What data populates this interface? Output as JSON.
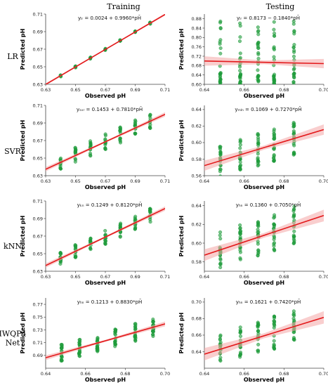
{
  "headers": {
    "training": "Training",
    "testing": "Testing"
  },
  "rows": [
    {
      "label": [
        "LR"
      ]
    },
    {
      "label": [
        "SVR"
      ]
    },
    {
      "label": [
        "kNN"
      ]
    },
    {
      "label": [
        "IWQP4",
        "Net"
      ]
    }
  ],
  "colors": {
    "points": "#1e9b3a",
    "fit": "#e31a1c",
    "band": "#f4a6a6"
  },
  "chart_data": [
    {
      "type": "scatter",
      "id": "lr-train",
      "xlabel": "Observed pH",
      "ylabel": "Predicted pH",
      "equation": "yₗᵣ = 0.0024 + 0.9960*pH̄",
      "intercept": 0.0024,
      "slope": 0.996,
      "xlim": [
        0.63,
        0.71
      ],
      "ylim": [
        0.63,
        0.71
      ],
      "xticks": [
        "0.63",
        "0.65",
        "0.67",
        "0.69",
        "0.71"
      ],
      "yticks": [
        "0.63",
        "0.65",
        "0.67",
        "0.69",
        "0.71"
      ],
      "x_groups": [
        0.64,
        0.65,
        0.66,
        0.67,
        0.68,
        0.69,
        0.7
      ],
      "y_spread": 0.001,
      "points_per_group": 6,
      "ci_band": 0.0005
    },
    {
      "type": "scatter",
      "id": "lr-test",
      "xlabel": "Observed pH",
      "ylabel": "Predicted pH",
      "equation": "yₗᵣ = 0.8173 − 0.1840*pH̄",
      "intercept": 0.8173,
      "slope": -0.184,
      "xlim": [
        0.64,
        0.7
      ],
      "ylim": [
        0.6,
        0.9
      ],
      "xticks": [
        "0.64",
        "0.66",
        "0.68",
        "0.70"
      ],
      "yticks": [
        "0.60",
        "0.64",
        "0.68",
        "0.72",
        "0.76",
        "0.80",
        "0.84",
        "0.88"
      ],
      "x_groups": [
        0.648,
        0.658,
        0.667,
        0.675,
        0.685
      ],
      "y_range": [
        0.6,
        0.88
      ],
      "points_per_group": 26,
      "ci_band": 0.008
    },
    {
      "type": "scatter",
      "id": "svr-train",
      "xlabel": "Observed pH",
      "ylabel": "Predicted pH",
      "equation": "yₛᵥᵣ = 0.1453 + 0.7810*pH̄",
      "intercept": 0.1453,
      "slope": 0.781,
      "xlim": [
        0.63,
        0.71
      ],
      "ylim": [
        0.63,
        0.71
      ],
      "xticks": [
        "0.63",
        "0.65",
        "0.67",
        "0.69",
        "0.71"
      ],
      "yticks": [
        "0.63",
        "0.65",
        "0.67",
        "0.69",
        "0.71"
      ],
      "x_groups": [
        0.64,
        0.65,
        0.66,
        0.67,
        0.68,
        0.69,
        0.7
      ],
      "y_spread": 0.009,
      "points_per_group": 14,
      "ci_band": 0.001
    },
    {
      "type": "scatter",
      "id": "svr-test",
      "xlabel": "Observed pH",
      "ylabel": "Predicted pH",
      "equation": "yₘₗₙ = 0.1069 + 0.7270*pH̄",
      "intercept": 0.1069,
      "slope": 0.727,
      "xlim": [
        0.64,
        0.7
      ],
      "ylim": [
        0.56,
        0.645
      ],
      "xticks": [
        "0.64",
        "0.66",
        "0.68",
        "0.70"
      ],
      "yticks": [
        "0.56",
        "0.58",
        "0.60",
        "0.62",
        "0.64"
      ],
      "x_groups": [
        0.648,
        0.658,
        0.667,
        0.675,
        0.685
      ],
      "y_spread": 0.02,
      "points_per_group": 22,
      "ci_band": 0.0025
    },
    {
      "type": "scatter",
      "id": "knn-train",
      "xlabel": "Observed pH",
      "ylabel": "Predicted pH",
      "equation": "yₖₙ = 0.1249 + 0.8120*pH̄",
      "intercept": 0.1249,
      "slope": 0.812,
      "xlim": [
        0.63,
        0.71
      ],
      "ylim": [
        0.63,
        0.71
      ],
      "xticks": [
        "0.63",
        "0.65",
        "0.67",
        "0.69",
        "0.71"
      ],
      "yticks": [
        "0.63",
        "0.65",
        "0.67",
        "0.69",
        "0.71"
      ],
      "x_groups": [
        0.64,
        0.65,
        0.66,
        0.67,
        0.68,
        0.69,
        0.7
      ],
      "y_spread": 0.008,
      "points_per_group": 14,
      "ci_band": 0.001
    },
    {
      "type": "scatter",
      "id": "knn-test",
      "xlabel": "Observed pH",
      "ylabel": "Predicted pH",
      "equation": "yₕₙ = 0.1360 + 0.7050*pH̄",
      "intercept": 0.136,
      "slope": 0.705,
      "xlim": [
        0.64,
        0.7
      ],
      "ylim": [
        0.57,
        0.645
      ],
      "xticks": [
        "0.64",
        "0.66",
        "0.68",
        "0.70"
      ],
      "yticks": [
        "0.58",
        "0.60",
        "0.62",
        "0.64"
      ],
      "x_groups": [
        0.648,
        0.658,
        0.667,
        0.675,
        0.685
      ],
      "y_spread": 0.02,
      "points_per_group": 22,
      "ci_band": 0.0025
    },
    {
      "type": "scatter",
      "id": "iwqp-train",
      "xlabel": "Observed pH",
      "ylabel": "Predicted pH",
      "equation": "yₕₙ = 0.1213 + 0.8830*pH̄",
      "intercept": 0.1213,
      "slope": 0.883,
      "xlim": [
        0.64,
        0.7
      ],
      "ylim": [
        0.67,
        0.78
      ],
      "xticks": [
        "0.64",
        "0.66",
        "0.68",
        "0.70"
      ],
      "yticks": [
        "0.69",
        "0.71",
        "0.73",
        "0.75",
        "0.77"
      ],
      "x_groups": [
        0.648,
        0.657,
        0.666,
        0.675,
        0.685,
        0.694
      ],
      "y_spread": 0.014,
      "points_per_group": 20,
      "ci_band": 0.0015
    },
    {
      "type": "scatter",
      "id": "iwqp-test",
      "xlabel": "Observed pH",
      "ylabel": "Predicted pH",
      "equation": "yₕₙ = 0.1621 + 0.7420*pH̄",
      "intercept": 0.1621,
      "slope": 0.742,
      "xlim": [
        0.64,
        0.7
      ],
      "ylim": [
        0.62,
        0.705
      ],
      "xticks": [
        "0.64",
        "0.66",
        "0.68",
        "0.70"
      ],
      "yticks": [
        "0.64",
        "0.66",
        "0.68",
        "0.70"
      ],
      "x_groups": [
        0.648,
        0.658,
        0.667,
        0.675,
        0.685
      ],
      "y_spread": 0.02,
      "points_per_group": 20,
      "ci_band": 0.003
    }
  ]
}
